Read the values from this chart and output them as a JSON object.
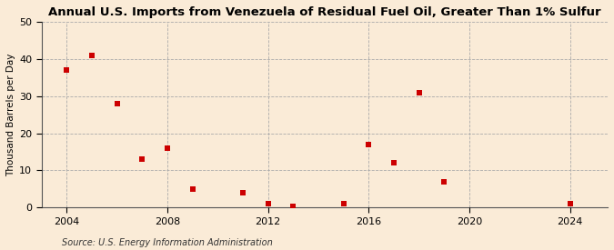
{
  "title": "Annual U.S. Imports from Venezuela of Residual Fuel Oil, Greater Than 1% Sulfur",
  "ylabel": "Thousand Barrels per Day",
  "source": "Source: U.S. Energy Information Administration",
  "background_color": "#faebd7",
  "plot_bg_color": "#faebd7",
  "marker_color": "#cc0000",
  "marker_size": 4,
  "xlim": [
    2003,
    2025.5
  ],
  "ylim": [
    0,
    50
  ],
  "xticks": [
    2004,
    2008,
    2012,
    2016,
    2020,
    2024
  ],
  "yticks": [
    0,
    10,
    20,
    30,
    40,
    50
  ],
  "data_x": [
    2004,
    2005,
    2006,
    2007,
    2008,
    2009,
    2011,
    2012,
    2013,
    2015,
    2016,
    2017,
    2018,
    2019,
    2024
  ],
  "data_y": [
    37.0,
    41.0,
    28.0,
    13.0,
    16.0,
    5.0,
    4.0,
    1.0,
    0.3,
    1.0,
    17.0,
    12.0,
    31.0,
    7.0,
    1.0
  ],
  "title_fontsize": 9.5,
  "axis_fontsize": 7.5,
  "tick_fontsize": 8,
  "source_fontsize": 7
}
